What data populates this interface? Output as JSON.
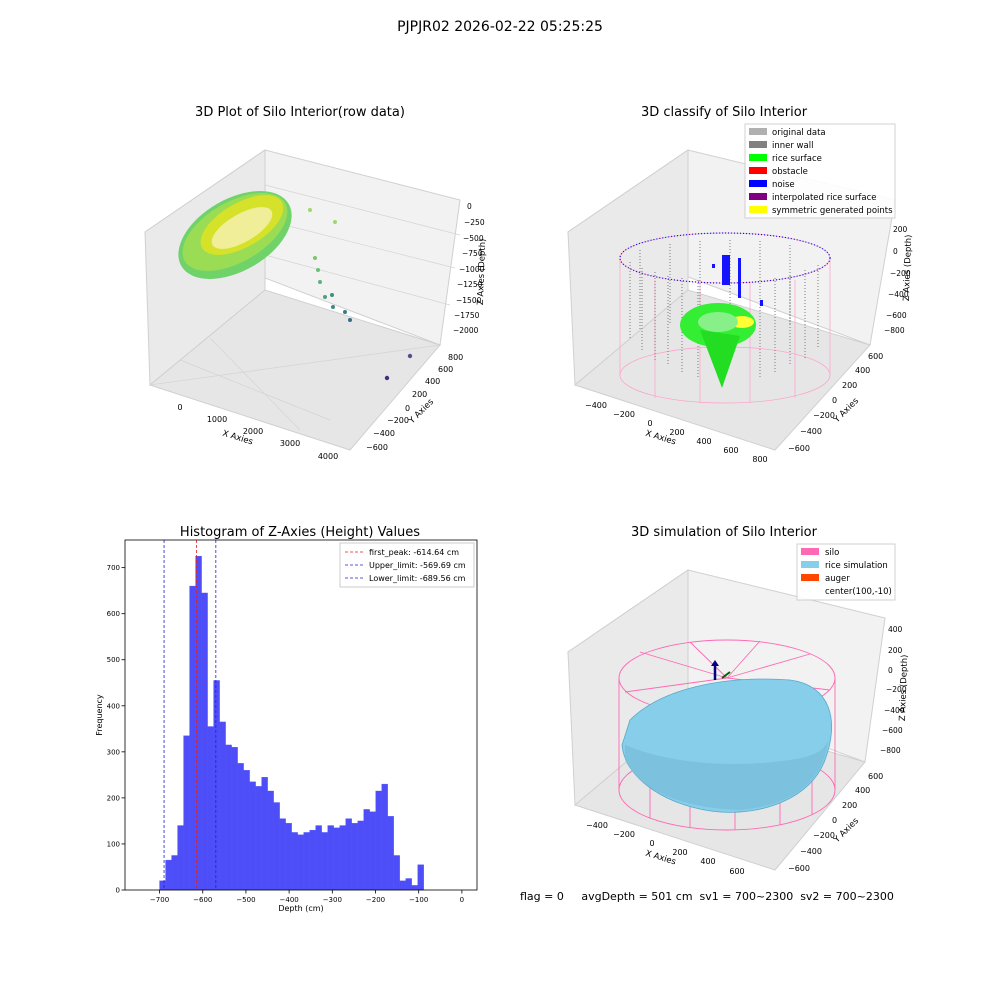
{
  "suptitle": "PJPJR02 2026-02-22 05:25:25",
  "status_line": "flag = 0     avgDepth = 501 cm  sv1 = 700~2300  sv2 = 700~2300",
  "colors": {
    "hist_bar": "#4e4ef9",
    "first_peak": "#e02020",
    "limits": "#2020d0",
    "silo": "#ff69b4",
    "rice_sim": "#87ceeb",
    "auger": "#ff4500",
    "original": "#b0b0b0",
    "inner_wall": "#808080",
    "rice_surface": "#00ff00",
    "obstacle": "#ff0000",
    "noise": "#0000ff",
    "interp": "#800080",
    "symm": "#ffff00"
  },
  "chart_data": [
    {
      "type": "scatter",
      "title": "3D Plot of Silo Interior(row data)",
      "xlabel": "X Axies",
      "ylabel": "Y Axies",
      "zlabel": "Z Axies (Depth)",
      "xticks": [
        "0",
        "1000",
        "2000",
        "3000",
        "4000"
      ],
      "yticks": [
        "−600",
        "−400",
        "−200",
        "0",
        "200",
        "400",
        "600",
        "800"
      ],
      "zticks": [
        "0",
        "−250",
        "−500",
        "−750",
        "−1000",
        "−1250",
        "−1500",
        "−1750",
        "−2000"
      ],
      "outliers": [
        {
          "x": 1700,
          "y": 0,
          "z": -900
        },
        {
          "x": 2200,
          "y": 100,
          "z": -1300
        },
        {
          "x": 3000,
          "y": 500,
          "z": -1800
        },
        {
          "x": 3300,
          "y": 300,
          "z": -2000
        }
      ]
    },
    {
      "type": "scatter",
      "title": "3D classify of Silo Interior",
      "xlabel": "X Axies",
      "ylabel": "Y Axies",
      "zlabel": "Z Axies (Depth)",
      "xticks": [
        "−400",
        "−200",
        "0",
        "200",
        "400",
        "600",
        "800"
      ],
      "yticks": [
        "−600",
        "−400",
        "−200",
        "0",
        "200",
        "400",
        "600"
      ],
      "zticks": [
        "200",
        "0",
        "−200",
        "−400",
        "−600",
        "−800"
      ],
      "legend": [
        "original data",
        "inner wall",
        "rice surface",
        "obstacle",
        "noise",
        "interpolated rice surface",
        "symmetric generated points"
      ],
      "legend_loc": "upper right"
    },
    {
      "type": "bar",
      "title": "Histogram of Z-Axies (Height) Values",
      "xlabel": "Depth (cm)",
      "ylabel": "Frequency",
      "xlim": [
        -780,
        35
      ],
      "ylim": [
        0,
        760
      ],
      "xticks": [
        -700,
        -600,
        -500,
        -400,
        -300,
        -200,
        -100,
        0
      ],
      "yticks": [
        0,
        100,
        200,
        300,
        400,
        500,
        600,
        700
      ],
      "bin_start": -700,
      "bin_width": 13.9,
      "values": [
        20,
        65,
        75,
        140,
        335,
        660,
        725,
        645,
        355,
        455,
        365,
        315,
        310,
        275,
        260,
        235,
        225,
        245,
        215,
        190,
        155,
        145,
        125,
        120,
        125,
        130,
        140,
        125,
        140,
        135,
        140,
        155,
        145,
        150,
        175,
        170,
        215,
        230,
        160,
        75,
        20,
        25,
        10,
        55
      ],
      "vlines": [
        {
          "name": "first_peak",
          "label": "first_peak: -614.64 cm",
          "x": -614.64
        },
        {
          "name": "upper_limit",
          "label": "Upper_limit: -569.69 cm",
          "x": -569.69
        },
        {
          "name": "lower_limit",
          "label": "Lower_limit: -689.56 cm",
          "x": -689.56
        }
      ],
      "legend_loc": "upper right"
    },
    {
      "type": "scatter",
      "title": "3D simulation of Silo Interior",
      "xlabel": "X Axies",
      "ylabel": "Y Axies",
      "zlabel": "Z Axies (Depth)",
      "xticks": [
        "−400",
        "−200",
        "0",
        "200",
        "400",
        "600"
      ],
      "yticks": [
        "−600",
        "−400",
        "−200",
        "0",
        "200",
        "400",
        "600"
      ],
      "zticks": [
        "400",
        "200",
        "0",
        "−200",
        "−400",
        "−600",
        "−800"
      ],
      "legend": [
        "silo",
        "rice simulation",
        "auger",
        "center(100,-10)"
      ],
      "legend_loc": "upper right"
    }
  ]
}
